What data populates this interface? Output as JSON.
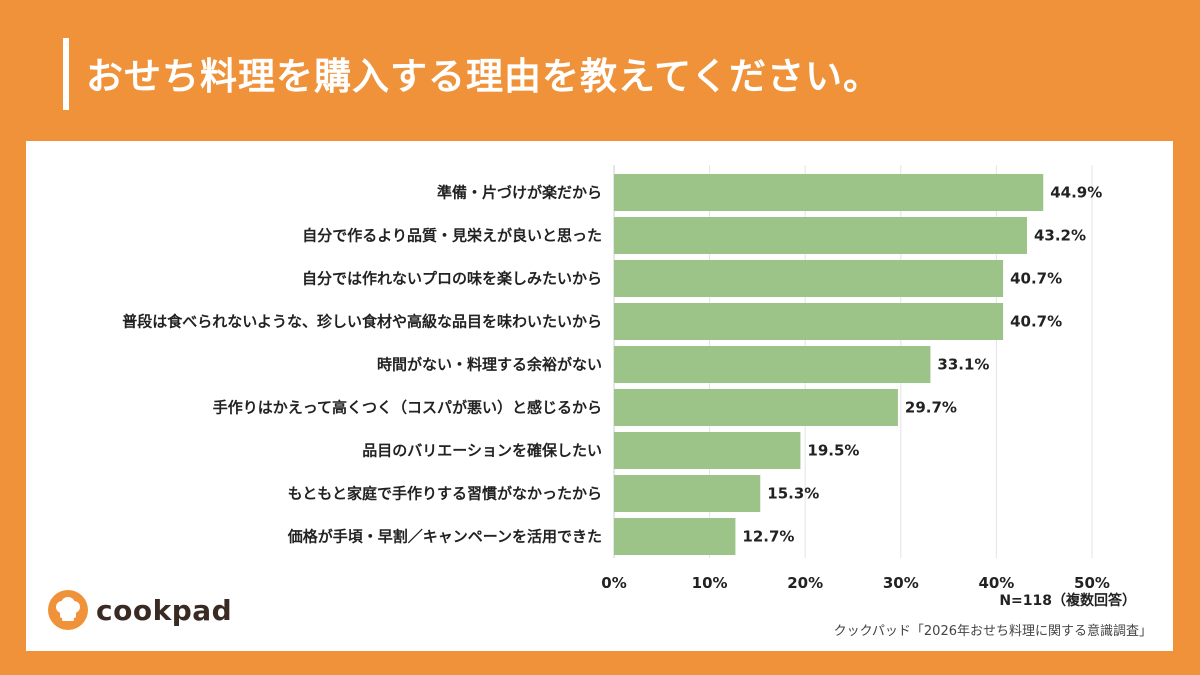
{
  "header": {
    "title": "おせち料理を購入する理由を教えてください。"
  },
  "chart_data": {
    "type": "bar",
    "orientation": "horizontal",
    "categories": [
      "準備・片づけが楽だから",
      "自分で作るより品質・見栄えが良いと思った",
      "自分では作れないプロの味を楽しみたいから",
      "普段は食べられないような、珍しい食材や高級な品目を味わいたいから",
      "時間がない・料理する余裕がない",
      "手作りはかえって高くつく（コスパが悪い）と感じるから",
      "品目のバリエーションを確保したい",
      "もともと家庭で手作りする習慣がなかったから",
      "価格が手頃・早割／キャンペーンを活用できた"
    ],
    "values": [
      44.9,
      43.2,
      40.7,
      40.7,
      33.1,
      29.7,
      19.5,
      15.3,
      12.7
    ],
    "value_labels": [
      "44.9%",
      "43.2%",
      "40.7%",
      "40.7%",
      "33.1%",
      "29.7%",
      "19.5%",
      "15.3%",
      "12.7%"
    ],
    "xlim": [
      0,
      50
    ],
    "x_ticks": [
      "0%",
      "10%",
      "20%",
      "30%",
      "40%",
      "50%"
    ],
    "grid": true,
    "bar_color": "#9DC488",
    "title": "",
    "xlabel": "",
    "ylabel": ""
  },
  "notes": {
    "sample": "N=118（複数回答）",
    "source": "クックパッド「2026年おせち料理に関する意識調査」"
  },
  "brand": {
    "logo_text": "cookpad",
    "accent_color": "#F0923A"
  }
}
